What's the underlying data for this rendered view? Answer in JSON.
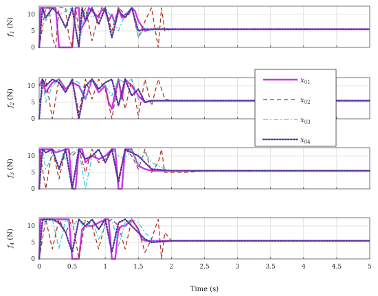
{
  "chart_data": {
    "type": "line",
    "xlabel": "Time (s)",
    "xlim": [
      0,
      5
    ],
    "xticks": [
      "0",
      "0.5",
      "1",
      "1.5",
      "2",
      "2.5",
      "3",
      "3.5",
      "4",
      "4.5",
      "5"
    ],
    "ylim": [
      0,
      12.5
    ],
    "yticks": [
      "0",
      "5",
      "10"
    ],
    "legend": {
      "placement": "right-of-second-panel",
      "entries": [
        {
          "sym": "x",
          "sub": "01",
          "color": "#cc33ee",
          "style": "solid"
        },
        {
          "sym": "x",
          "sub": "02",
          "color": "#aa3322",
          "style": "dashed"
        },
        {
          "sym": "x",
          "sub": "03",
          "color": "#33ccdd",
          "style": "dashdot"
        },
        {
          "sym": "x",
          "sub": "04",
          "color": "#553399",
          "style": "dotted"
        }
      ]
    },
    "panels": [
      {
        "ylabel": "f",
        "ysub": "1",
        "yunit": " (N)",
        "series": [
          {
            "x": [
              0,
              0.02,
              0.05,
              0.25,
              0.3,
              0.5,
              0.55,
              0.6,
              0.62,
              0.7,
              0.75,
              0.8,
              0.85,
              0.9,
              0.95,
              1.0,
              1.05,
              1.1,
              1.15,
              1.2,
              1.25,
              1.3,
              1.35,
              1.4,
              1.45,
              1.5,
              1.6,
              1.7,
              1.8,
              2.0,
              2.5,
              5
            ],
            "y": [
              0,
              12,
              12,
              12,
              0,
              0,
              12,
              12,
              5,
              8,
              12,
              11,
              10,
              9,
              12,
              11,
              8,
              10,
              7,
              12,
              9,
              10,
              10,
              12,
              11,
              8,
              5,
              5.5,
              5.5,
              5.5,
              5.5,
              5.5
            ]
          },
          {
            "x": [
              0,
              0.1,
              0.15,
              0.2,
              0.25,
              0.3,
              0.35,
              0.4,
              0.45,
              0.5,
              0.55,
              0.6,
              0.7,
              0.8,
              0.9,
              1.0,
              1.1,
              1.2,
              1.3,
              1.4,
              1.5,
              1.6,
              1.7,
              1.8,
              1.85,
              1.9,
              2.0,
              2.5,
              5
            ],
            "y": [
              0,
              12,
              12,
              3,
              0,
              12,
              12,
              12,
              3,
              0,
              12,
              5,
              12,
              2,
              10,
              12,
              5,
              12,
              10,
              12,
              3,
              8,
              12,
              0,
              12,
              5,
              5.5,
              5.5,
              5.5
            ]
          },
          {
            "x": [
              0,
              0.05,
              0.1,
              0.2,
              0.3,
              0.4,
              0.5,
              0.6,
              0.7,
              0.8,
              0.9,
              1.0,
              1.1,
              1.2,
              1.3,
              1.4,
              1.5,
              1.6,
              1.7,
              1.8,
              2.0,
              2.5,
              5
            ],
            "y": [
              0,
              12,
              8,
              12,
              10,
              11,
              12,
              0,
              12,
              9,
              11,
              12,
              9,
              5,
              10,
              12,
              3,
              6,
              5,
              6,
              5.5,
              5.5,
              5.5
            ]
          },
          {
            "x": [
              0,
              0.05,
              0.1,
              0.2,
              0.3,
              0.4,
              0.5,
              0.6,
              0.65,
              0.7,
              0.8,
              0.9,
              1.0,
              1.1,
              1.2,
              1.3,
              1.4,
              1.5,
              1.6,
              2.0,
              5
            ],
            "y": [
              0,
              12,
              9,
              12,
              10,
              6,
              12,
              0,
              12,
              8,
              12,
              7,
              12,
              3,
              11,
              9,
              12,
              5,
              5.5,
              5.5,
              5.5
            ]
          }
        ]
      },
      {
        "ylabel": "f",
        "ysub": "2",
        "yunit": " (N)",
        "series": [
          {
            "x": [
              0,
              0.05,
              0.1,
              0.2,
              0.3,
              0.4,
              0.5,
              0.6,
              0.7,
              0.8,
              0.9,
              1.0,
              1.05,
              1.1,
              1.15,
              1.2,
              1.25,
              1.3,
              1.4,
              1.5,
              1.6,
              1.7,
              1.8,
              2.0,
              2.5,
              5
            ],
            "y": [
              10,
              12,
              8,
              11,
              12,
              9,
              11,
              10,
              6,
              12,
              8,
              10,
              5,
              3,
              8,
              12,
              6,
              12,
              10,
              7,
              5,
              5.5,
              5.5,
              5.5,
              5.5,
              5.5
            ]
          },
          {
            "x": [
              0,
              0.1,
              0.2,
              0.3,
              0.4,
              0.5,
              0.6,
              0.7,
              0.8,
              0.9,
              1.0,
              1.1,
              1.2,
              1.3,
              1.4,
              1.5,
              1.6,
              1.7,
              1.8,
              1.9,
              2.0,
              2.5,
              5
            ],
            "y": [
              5,
              12,
              0,
              12,
              8,
              12,
              2,
              12,
              6,
              12,
              9,
              0,
              12,
              3,
              12,
              1,
              12,
              4,
              12,
              6,
              5.5,
              5.5,
              5.5
            ]
          },
          {
            "x": [
              0,
              0.05,
              0.1,
              0.2,
              0.3,
              0.4,
              0.5,
              0.6,
              0.7,
              0.8,
              0.9,
              1.0,
              1.1,
              1.2,
              1.3,
              1.4,
              1.5,
              1.6,
              1.7,
              1.8,
              2.0,
              2.5,
              5
            ],
            "y": [
              0,
              12,
              5,
              10,
              12,
              8,
              12,
              11,
              6,
              12,
              9,
              10,
              7,
              12,
              11,
              12,
              6,
              6,
              5,
              5.5,
              5.5,
              5.5,
              5.5
            ]
          },
          {
            "x": [
              0,
              0.05,
              0.1,
              0.2,
              0.3,
              0.4,
              0.5,
              0.6,
              0.7,
              0.8,
              0.9,
              1.0,
              1.1,
              1.2,
              1.3,
              1.4,
              1.5,
              1.6,
              1.7,
              2.0,
              5
            ],
            "y": [
              0,
              12,
              10,
              12,
              11,
              8,
              12,
              0,
              10,
              12,
              9,
              11,
              12,
              4,
              12,
              7,
              9,
              5,
              5.5,
              5.5,
              5.5
            ]
          }
        ]
      },
      {
        "ylabel": "f",
        "ysub": "3",
        "yunit": " (N)",
        "series": [
          {
            "x": [
              0,
              0.02,
              0.05,
              0.2,
              0.25,
              0.4,
              0.45,
              0.5,
              0.55,
              0.6,
              0.65,
              0.7,
              0.8,
              0.9,
              1.0,
              1.1,
              1.15,
              1.2,
              1.25,
              1.3,
              1.35,
              1.4,
              1.5,
              1.6,
              1.7,
              1.8,
              1.9,
              2.0,
              2.5,
              5
            ],
            "y": [
              0,
              12,
              12,
              12,
              11,
              12,
              12,
              0,
              0,
              12,
              12,
              8,
              10,
              9,
              10,
              12,
              12,
              0,
              0,
              12,
              12,
              12,
              7,
              6,
              5.5,
              5.5,
              5.5,
              5.5,
              5.5,
              5.5
            ]
          },
          {
            "x": [
              0,
              0.1,
              0.2,
              0.3,
              0.4,
              0.5,
              0.6,
              0.7,
              0.8,
              0.9,
              1.0,
              1.1,
              1.2,
              1.3,
              1.4,
              1.5,
              1.6,
              1.7,
              1.8,
              1.85,
              1.9,
              2.0,
              2.2,
              2.5,
              5
            ],
            "y": [
              12,
              0,
              12,
              3,
              12,
              10,
              12,
              5,
              12,
              8,
              9,
              12,
              3,
              12,
              10,
              6,
              12,
              5,
              8,
              12,
              5,
              5,
              5,
              5.5,
              5.5
            ]
          },
          {
            "x": [
              0,
              0.05,
              0.1,
              0.2,
              0.3,
              0.4,
              0.5,
              0.6,
              0.7,
              0.8,
              0.9,
              1.0,
              1.1,
              1.2,
              1.3,
              1.4,
              1.5,
              1.6,
              1.7,
              1.8,
              1.9,
              2.0,
              2.5,
              5
            ],
            "y": [
              0,
              12,
              6,
              10,
              12,
              9,
              11,
              12,
              0,
              10,
              12,
              8,
              12,
              10,
              9,
              12,
              7,
              11,
              8,
              7,
              6,
              5.5,
              5.5,
              5.5
            ]
          },
          {
            "x": [
              0,
              0.05,
              0.1,
              0.2,
              0.3,
              0.4,
              0.5,
              0.6,
              0.7,
              0.8,
              0.9,
              1.0,
              1.1,
              1.2,
              1.3,
              1.4,
              1.5,
              1.6,
              1.7,
              2.0,
              5
            ],
            "y": [
              0,
              12,
              11,
              12,
              6,
              12,
              0,
              12,
              9,
              10,
              12,
              8,
              12,
              2,
              12,
              11,
              10,
              8,
              6,
              5.5,
              5.5
            ]
          }
        ]
      },
      {
        "ylabel": "f",
        "ysub": "4",
        "yunit": " (N)",
        "series": [
          {
            "x": [
              0,
              0.02,
              0.05,
              0.45,
              0.5,
              0.6,
              0.65,
              0.7,
              0.8,
              0.9,
              1.0,
              1.05,
              1.1,
              1.15,
              1.2,
              1.25,
              1.3,
              1.4,
              1.5,
              1.55,
              1.6,
              1.7,
              1.8,
              2.0,
              2.5,
              5
            ],
            "y": [
              0,
              12,
              12,
              12,
              0,
              0,
              9,
              10,
              10,
              11,
              12,
              12,
              0,
              0,
              9,
              10,
              10,
              12,
              9,
              6,
              5.5,
              5.5,
              5.5,
              5.5,
              5.5,
              5.5
            ]
          },
          {
            "x": [
              0,
              0.1,
              0.2,
              0.3,
              0.4,
              0.5,
              0.6,
              0.7,
              0.8,
              0.9,
              1.0,
              1.1,
              1.2,
              1.3,
              1.4,
              1.5,
              1.6,
              1.7,
              1.8,
              1.85,
              1.9,
              2.0,
              2.5,
              5
            ],
            "y": [
              0,
              12,
              3,
              12,
              8,
              12,
              0,
              12,
              10,
              3,
              11,
              12,
              10,
              3,
              12,
              9,
              2,
              6,
              12,
              0,
              8,
              5.5,
              5.5,
              5.5
            ]
          },
          {
            "x": [
              0,
              0.05,
              0.1,
              0.2,
              0.3,
              0.4,
              0.5,
              0.6,
              0.7,
              0.8,
              0.9,
              1.0,
              1.1,
              1.2,
              1.3,
              1.4,
              1.5,
              1.6,
              1.7,
              1.8,
              2.0,
              2.5,
              5
            ],
            "y": [
              0,
              12,
              11,
              12,
              3,
              12,
              10,
              12,
              9,
              12,
              6,
              10,
              12,
              4,
              11,
              12,
              11,
              8,
              6,
              5,
              5.5,
              5.5,
              5.5
            ]
          },
          {
            "x": [
              0,
              0.05,
              0.1,
              0.2,
              0.3,
              0.4,
              0.5,
              0.6,
              0.7,
              0.8,
              0.9,
              1.0,
              1.1,
              1.2,
              1.3,
              1.4,
              1.5,
              1.6,
              1.7,
              2.0,
              5
            ],
            "y": [
              0,
              12,
              12,
              12,
              11,
              8,
              2,
              12,
              10,
              12,
              9,
              12,
              2,
              11,
              12,
              10,
              8,
              6,
              5,
              5.5,
              5.5
            ]
          }
        ]
      }
    ]
  }
}
